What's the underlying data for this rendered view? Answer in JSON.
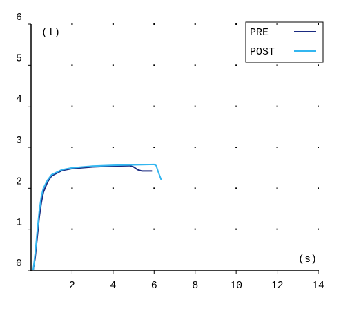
{
  "chart_data": {
    "type": "line",
    "x_label": "(s)",
    "y_label": "(l)",
    "xlim": [
      0,
      14
    ],
    "ylim": [
      0,
      6
    ],
    "xticks": [
      2,
      4,
      6,
      8,
      10,
      12,
      14
    ],
    "yticks": [
      0,
      1,
      2,
      3,
      4,
      5,
      6
    ],
    "grid": true,
    "legend": "top-right",
    "series": [
      {
        "name": "PRE",
        "color": "#1a2a80",
        "x": [
          0.1,
          0.2,
          0.3,
          0.4,
          0.5,
          0.6,
          0.8,
          1,
          1.5,
          2,
          3,
          4,
          4.8,
          5.0,
          5.2,
          5.4,
          5.9
        ],
        "values": [
          0,
          0.3,
          0.8,
          1.3,
          1.65,
          1.9,
          2.15,
          2.3,
          2.43,
          2.48,
          2.52,
          2.54,
          2.55,
          2.52,
          2.45,
          2.42,
          2.42
        ]
      },
      {
        "name": "POST",
        "color": "#33b6f0",
        "x": [
          0.1,
          0.2,
          0.3,
          0.4,
          0.5,
          0.6,
          0.8,
          1,
          1.5,
          2,
          3,
          4,
          5,
          6,
          6.1,
          6.2,
          6.35
        ],
        "values": [
          0,
          0.4,
          0.95,
          1.45,
          1.8,
          2.0,
          2.2,
          2.33,
          2.45,
          2.5,
          2.54,
          2.56,
          2.57,
          2.58,
          2.55,
          2.4,
          2.2
        ]
      }
    ]
  }
}
